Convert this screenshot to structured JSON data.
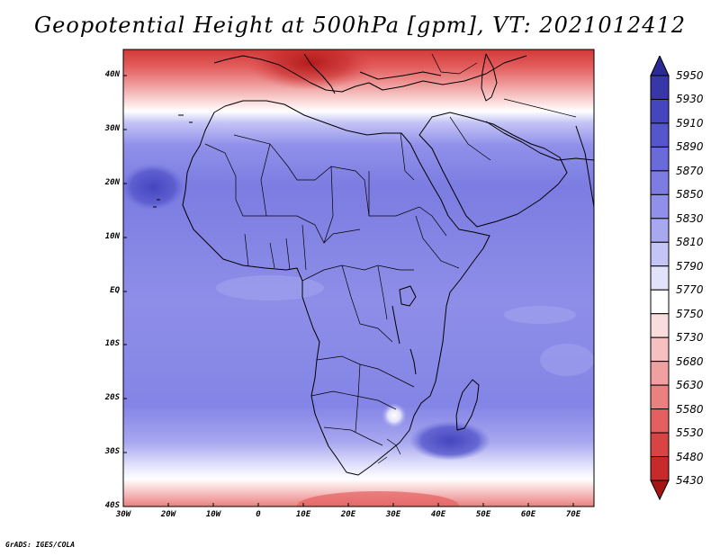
{
  "title": "Geopotential Height at 500hPa [gpm], VT: 2021012412",
  "credit": "GrADS: IGES/COLA",
  "lat_labels": [
    "40N",
    "30N",
    "20N",
    "10N",
    "EQ",
    "10S",
    "20S",
    "30S",
    "40S"
  ],
  "lon_labels": [
    "30W",
    "20W",
    "10W",
    "0",
    "10E",
    "20E",
    "30E",
    "40E",
    "50E",
    "60E",
    "70E"
  ],
  "colorbar": {
    "labels": [
      "5950",
      "5930",
      "5910",
      "5890",
      "5870",
      "5850",
      "5830",
      "5810",
      "5790",
      "5770",
      "5750",
      "5730",
      "5680",
      "5630",
      "5580",
      "5530",
      "5480",
      "5430"
    ],
    "colors": [
      "#2b2b96",
      "#3737aa",
      "#4545be",
      "#5656cc",
      "#6a6ad8",
      "#7c7ce2",
      "#9090ea",
      "#a8a8f0",
      "#c4c4f6",
      "#e2e2fb",
      "#ffffff",
      "#fbdcdc",
      "#f6c0c0",
      "#f0a0a0",
      "#ea8080",
      "#e46060",
      "#d84444",
      "#c62a2a",
      "#a81414"
    ]
  }
}
